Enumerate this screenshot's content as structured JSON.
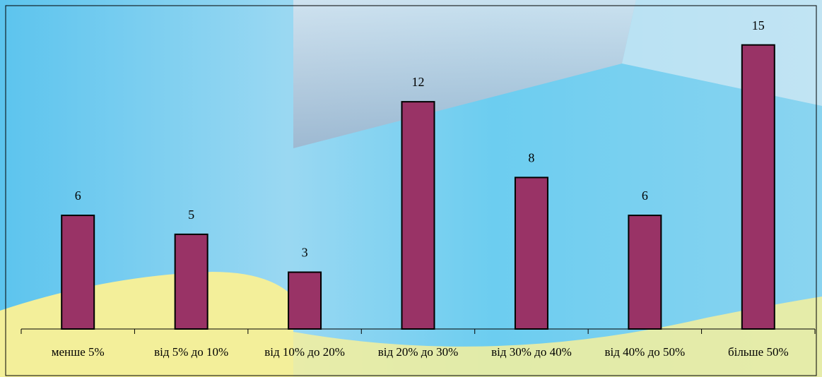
{
  "chart_data": {
    "type": "bar",
    "categories": [
      "менше 5%",
      "від 5% до 10%",
      "від 10% до 20%",
      "від 20% до 30%",
      "від 30% до 40%",
      "від 40% до 50%",
      "більше 50%"
    ],
    "values": [
      6,
      5,
      3,
      12,
      8,
      6,
      15
    ],
    "color": "#993366",
    "ylim": [
      0,
      17
    ]
  }
}
